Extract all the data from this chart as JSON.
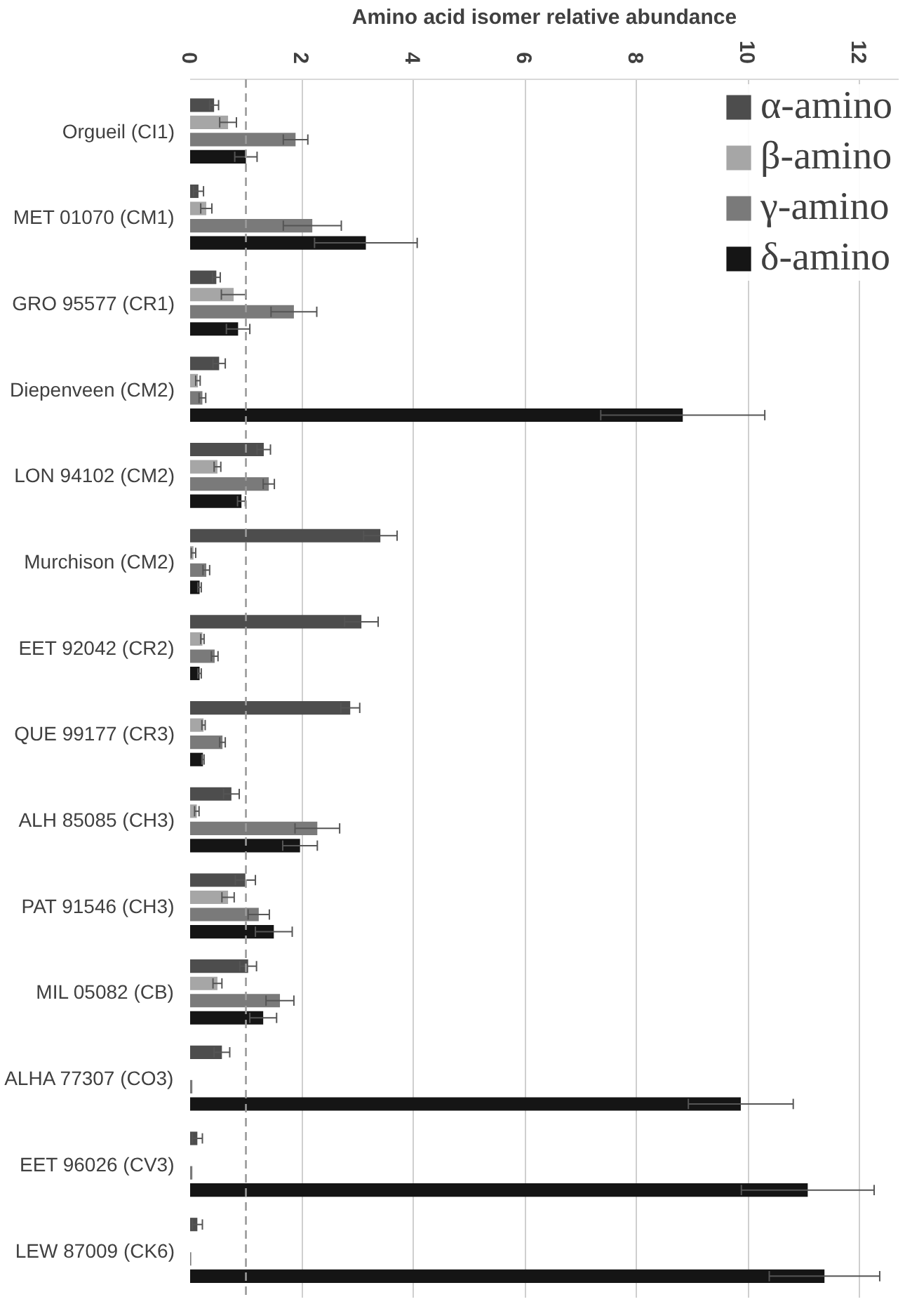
{
  "chart_data": {
    "type": "bar",
    "orientation": "horizontal",
    "xlabel": "Amino acid isomer relative abundance",
    "categories": [
      "Orgueil (CI1)",
      "MET 01070 (CM1)",
      "GRO 95577 (CR1)",
      "Diepenveen (CM2)",
      "LON 94102 (CM2)",
      "Murchison (CM2)",
      "EET 92042 (CR2)",
      "QUE 99177 (CR3)",
      "ALH 85085 (CH3)",
      "PAT 91546 (CH3)",
      "MIL 05082 (CB)",
      "ALHA 77307 (CO3)",
      "EET 96026 (CV3)",
      "LEW 87009 (CK6)"
    ],
    "series": [
      {
        "name": "α-amino",
        "color": "#4d4d4d",
        "values": [
          0.43,
          0.15,
          0.47,
          0.52,
          1.32,
          3.41,
          3.07,
          2.87,
          0.74,
          0.99,
          1.04,
          0.57,
          0.13,
          0.13
        ],
        "errors": [
          0.08,
          0.09,
          0.07,
          0.11,
          0.12,
          0.3,
          0.3,
          0.17,
          0.14,
          0.18,
          0.15,
          0.14,
          0.09,
          0.09
        ]
      },
      {
        "name": "β-amino",
        "color": "#a6a6a6",
        "values": [
          0.68,
          0.29,
          0.78,
          0.14,
          0.49,
          0.06,
          0.22,
          0.24,
          0.12,
          0.68,
          0.49,
          null,
          null,
          null
        ],
        "errors": [
          0.15,
          0.1,
          0.22,
          0.04,
          0.06,
          0.04,
          0.03,
          0.03,
          0.04,
          0.11,
          0.08,
          null,
          null,
          null
        ]
      },
      {
        "name": "γ-amino",
        "color": "#7a7a7a",
        "values": [
          1.89,
          2.19,
          1.86,
          0.22,
          1.41,
          0.29,
          0.44,
          0.58,
          2.28,
          1.23,
          1.61,
          0.04,
          0.04,
          0.02
        ],
        "errors": [
          0.22,
          0.52,
          0.41,
          0.06,
          0.1,
          0.06,
          0.06,
          0.05,
          0.4,
          0.19,
          0.25,
          null,
          null,
          null
        ]
      },
      {
        "name": "δ-amino",
        "color": "#151515",
        "values": [
          1.0,
          3.15,
          0.86,
          8.83,
          0.92,
          0.17,
          0.17,
          0.23,
          1.97,
          1.5,
          1.31,
          9.87,
          11.07,
          11.37
        ],
        "errors": [
          0.2,
          0.92,
          0.21,
          1.47,
          0.07,
          0.03,
          0.03,
          0.02,
          0.31,
          0.33,
          0.24,
          0.94,
          1.19,
          0.99
        ]
      }
    ],
    "xlim": [
      0,
      12.7
    ],
    "xticks": [
      0,
      2,
      4,
      6,
      8,
      10,
      12
    ],
    "grid": "x",
    "legend": "top right",
    "ref_lines": [
      {
        "axis": "x",
        "value": 1,
        "line_style": "dashed",
        "color": "#9a9a9a"
      }
    ]
  }
}
